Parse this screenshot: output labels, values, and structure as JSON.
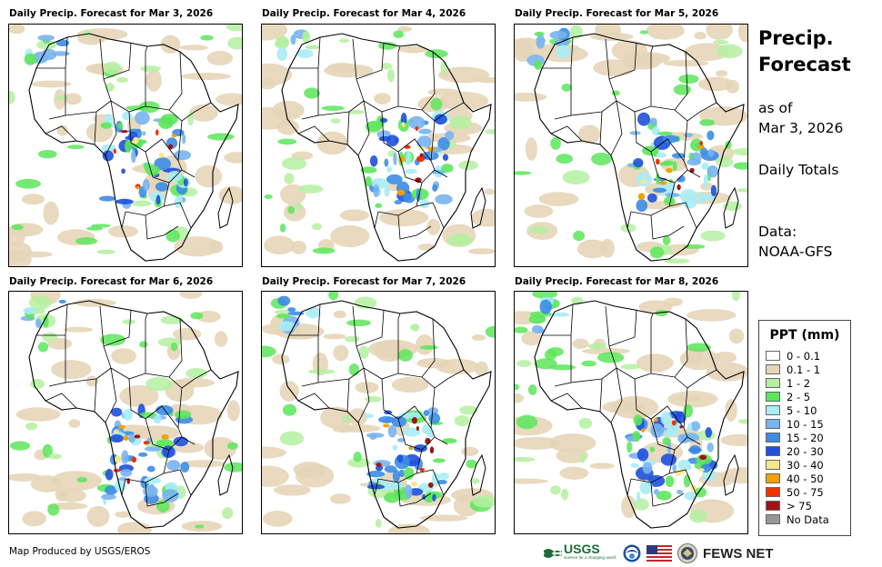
{
  "panels": [
    {
      "title": "Daily Precip. Forecast for Mar 3, 2026"
    },
    {
      "title": "Daily Precip. Forecast for Mar 4, 2026"
    },
    {
      "title": "Daily Precip. Forecast for Mar 5, 2026"
    },
    {
      "title": "Daily Precip. Forecast for Mar 6, 2026"
    },
    {
      "title": "Daily Precip. Forecast for Mar 7, 2026"
    },
    {
      "title": "Daily Precip. Forecast for Mar 8, 2026"
    }
  ],
  "sidebar": {
    "title_line1": "Precip.",
    "title_line2": "Forecast",
    "asof_line1": "as of",
    "asof_line2": "Mar 3, 2026",
    "totals": "Daily Totals",
    "data_line1": "Data:",
    "data_line2": "NOAA-GFS"
  },
  "legend": {
    "title": "PPT (mm)",
    "items": [
      {
        "label": "0 - 0.1",
        "color": "#ffffff"
      },
      {
        "label": "0.1 - 1",
        "color": "#e6d5b8"
      },
      {
        "label": "1 - 2",
        "color": "#b4f0a0"
      },
      {
        "label": "2 - 5",
        "color": "#5ce65c"
      },
      {
        "label": "5 - 10",
        "color": "#a8ecf5"
      },
      {
        "label": "10 - 15",
        "color": "#78b4f0"
      },
      {
        "label": "15 - 20",
        "color": "#3c8ce6"
      },
      {
        "label": "20 - 30",
        "color": "#1e50dc"
      },
      {
        "label": "30 - 40",
        "color": "#fae68c"
      },
      {
        "label": "40 - 50",
        "color": "#f5a000"
      },
      {
        "label": "50 - 75",
        "color": "#f03200"
      },
      {
        "label": "> 75",
        "color": "#a01414"
      },
      {
        "label": "No Data",
        "color": "#969696"
      }
    ]
  },
  "footer": {
    "credit": "Map Produced by USGS/EROS",
    "usgs": "USGS",
    "usgs_tagline": "science for a changing world",
    "fewsnet": "FEWS NET"
  }
}
